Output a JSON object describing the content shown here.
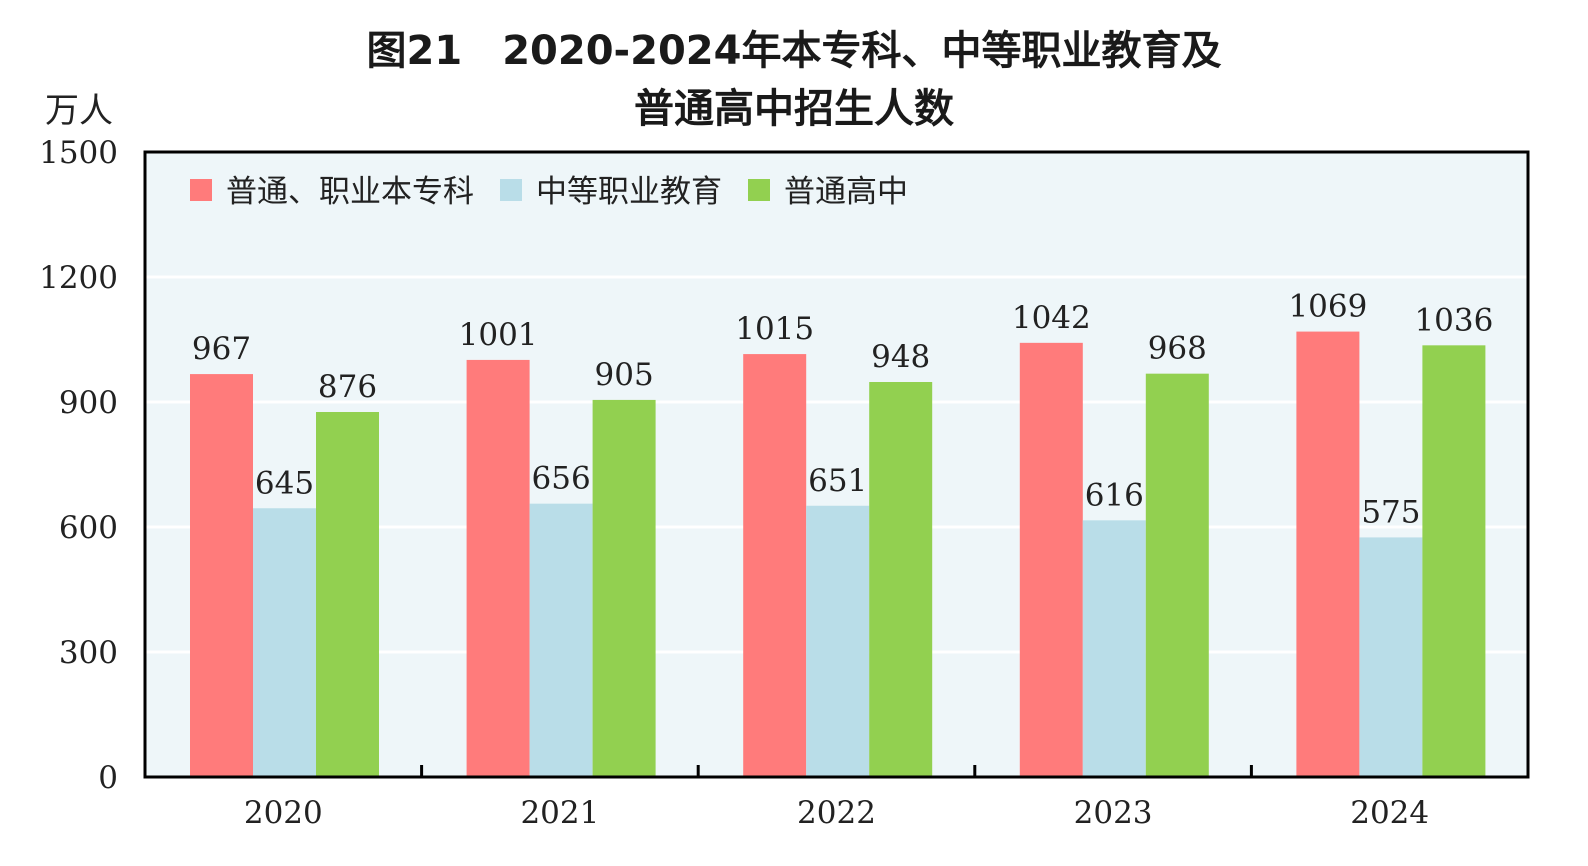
{
  "chart_data": {
    "type": "bar",
    "title_line1": "图21　2020-2024年本专科、中等职业教育及",
    "title_line2": "普通高中招生人数",
    "ylabel": "万人",
    "ylim": [
      0,
      1500
    ],
    "yticks": [
      "0",
      "300",
      "600",
      "900",
      "1200",
      "1500"
    ],
    "categories": [
      "2020",
      "2021",
      "2022",
      "2023",
      "2024"
    ],
    "grid": true,
    "legend_position": "top-left",
    "series": [
      {
        "name": "普通、职业本专科",
        "color": "#FF7B7B",
        "values": [
          967,
          1001,
          1015,
          1042,
          1069
        ]
      },
      {
        "name": "中等职业教育",
        "color": "#B9DDE8",
        "values": [
          645,
          656,
          651,
          616,
          575
        ]
      },
      {
        "name": "普通高中",
        "color": "#92D050",
        "values": [
          876,
          905,
          948,
          968,
          1036
        ]
      }
    ],
    "plot_background": "#EEF6F9"
  }
}
